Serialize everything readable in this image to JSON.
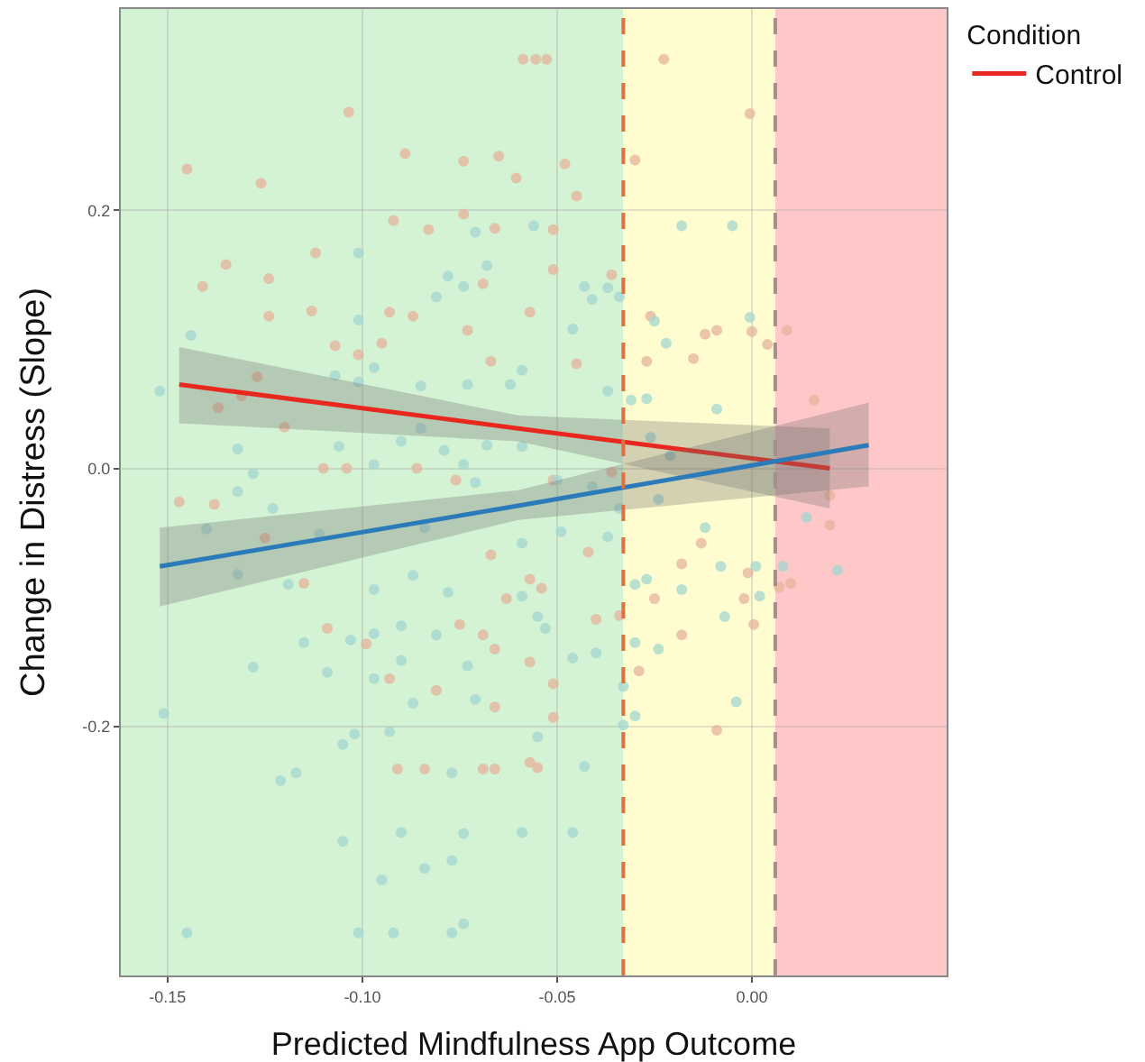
{
  "chart_data": {
    "type": "scatter",
    "xlabel": "Predicted Mindfulness App Outcome",
    "ylabel": "Change in Distress (Slope)",
    "legend_title": "Condition",
    "legend": "top right",
    "grid": true,
    "xlim": [
      -0.162,
      0.05
    ],
    "ylim": [
      -0.393,
      0.356
    ],
    "xticks": [
      -0.15,
      {
        "value": -0.1,
        "label": "-0.10"
      },
      -0.05,
      {
        "value": 0,
        "label": "0.00"
      }
    ],
    "yticks": [
      -0.2,
      {
        "value": 0,
        "label": "0.0"
      },
      0.2
    ],
    "bands": [
      {
        "axis": "x",
        "from": -0.162,
        "to": -0.033,
        "color": "#d4f2d4"
      },
      {
        "axis": "x",
        "from": -0.033,
        "to": 0.006,
        "color": "#fffdd0"
      },
      {
        "axis": "x",
        "from": 0.006,
        "to": 0.05,
        "color": "#ffc8c8"
      }
    ],
    "ref_lines": [
      {
        "axis": "x",
        "value": -0.033,
        "color": "#e07040",
        "line_style": "dashed"
      },
      {
        "axis": "x",
        "value": 0.006,
        "color": "#a09090",
        "line_style": "dashed"
      }
    ],
    "series": [
      {
        "marker": "circle",
        "color": "#e6b39c",
        "x": [
          -0.0587,
          -0.0555,
          -0.0527,
          -0.0226,
          -0.1035,
          -0.145,
          -0.126,
          -0.089,
          -0.074,
          -0.065,
          -0.048,
          -0.03,
          -0.0605,
          -0.045,
          -0.135,
          -0.141,
          -0.124,
          -0.112,
          -0.092,
          -0.083,
          -0.074,
          -0.066,
          -0.051,
          -0.087,
          -0.093,
          -0.124,
          -0.113,
          -0.057,
          -0.036,
          -0.026,
          -0.127,
          -0.137,
          -0.131,
          -0.12,
          -0.147,
          -0.138,
          -0.11,
          -0.104,
          -0.086,
          -0.076,
          -0.051,
          -0.036,
          -0.107,
          -0.101,
          -0.095,
          -0.073,
          -0.067,
          -0.045,
          -0.027,
          -0.069,
          -0.051,
          -0.015,
          -0.0005,
          -0.012,
          -0.009,
          0.0,
          0.009,
          0.004,
          0.016,
          0.02,
          0.02,
          -0.109,
          -0.099,
          -0.075,
          -0.069,
          -0.066,
          -0.057,
          -0.051,
          -0.066,
          -0.051,
          -0.081,
          -0.091,
          -0.084,
          -0.069,
          -0.066,
          -0.057,
          -0.055,
          -0.093,
          -0.04,
          -0.034,
          -0.029,
          -0.115,
          -0.125,
          -0.067,
          -0.057,
          -0.054,
          -0.063,
          -0.025,
          -0.042,
          -0.013,
          -0.001,
          -0.002,
          0.0005,
          -0.009,
          0.007,
          0.01,
          -0.018,
          -0.018
        ],
        "values": [
          0.317,
          0.317,
          0.317,
          0.317,
          0.276,
          0.232,
          0.221,
          0.244,
          0.238,
          0.242,
          0.236,
          0.239,
          0.225,
          0.211,
          0.158,
          0.141,
          0.147,
          0.167,
          0.192,
          0.185,
          0.197,
          0.186,
          0.185,
          0.118,
          0.121,
          0.118,
          0.122,
          0.121,
          0.15,
          0.118,
          0.071,
          0.047,
          0.056,
          0.032,
          -0.026,
          -0.028,
          0.0,
          0.0,
          0.0,
          -0.009,
          -0.009,
          -0.003,
          0.095,
          0.088,
          0.097,
          0.107,
          0.083,
          0.081,
          0.083,
          0.143,
          0.154,
          0.085,
          0.275,
          0.104,
          0.107,
          0.106,
          0.107,
          0.096,
          0.053,
          -0.021,
          -0.044,
          -0.124,
          -0.136,
          -0.121,
          -0.129,
          -0.14,
          -0.15,
          -0.167,
          -0.185,
          -0.193,
          -0.172,
          -0.233,
          -0.233,
          -0.233,
          -0.233,
          -0.228,
          -0.232,
          -0.163,
          -0.117,
          -0.114,
          -0.157,
          -0.089,
          -0.054,
          -0.067,
          -0.086,
          -0.093,
          -0.101,
          -0.101,
          -0.065,
          -0.058,
          -0.081,
          -0.101,
          -0.121,
          -0.203,
          -0.092,
          -0.089,
          -0.074,
          -0.129
        ]
      },
      {
        "marker": "circle",
        "color": "#a3d6d0",
        "x": [
          -0.144,
          -0.152,
          -0.101,
          -0.071,
          -0.068,
          -0.056,
          -0.081,
          -0.101,
          -0.078,
          -0.074,
          -0.043,
          -0.037,
          -0.034,
          -0.041,
          -0.046,
          -0.025,
          -0.022,
          -0.097,
          -0.107,
          -0.101,
          -0.085,
          -0.073,
          -0.059,
          -0.062,
          -0.037,
          -0.031,
          -0.027,
          -0.132,
          -0.128,
          -0.132,
          -0.123,
          -0.14,
          -0.106,
          -0.097,
          -0.09,
          -0.079,
          -0.074,
          -0.071,
          -0.068,
          -0.059,
          -0.05,
          -0.041,
          -0.034,
          -0.024,
          -0.085,
          -0.026,
          -0.021,
          -0.018,
          -0.005,
          -0.0005,
          -0.009,
          0.014,
          -0.151,
          -0.145,
          -0.101,
          -0.092,
          -0.077,
          -0.074,
          -0.095,
          -0.084,
          -0.077,
          -0.105,
          -0.09,
          -0.074,
          -0.059,
          -0.046,
          -0.121,
          -0.117,
          -0.105,
          -0.102,
          -0.093,
          -0.128,
          -0.109,
          -0.097,
          -0.087,
          -0.077,
          -0.071,
          -0.055,
          -0.043,
          -0.033,
          -0.03,
          -0.033,
          -0.103,
          -0.097,
          -0.09,
          -0.081,
          -0.073,
          -0.046,
          -0.04,
          -0.024,
          -0.03,
          -0.09,
          -0.115,
          -0.132,
          -0.119,
          -0.097,
          -0.078,
          -0.059,
          -0.053,
          -0.055,
          -0.03,
          -0.027,
          -0.087,
          -0.111,
          -0.084,
          -0.059,
          -0.049,
          -0.037,
          -0.012,
          -0.008,
          0.001,
          0.002,
          -0.007,
          -0.004,
          -0.018,
          0.022,
          0.008
        ],
        "values": [
          0.103,
          0.06,
          0.167,
          0.183,
          0.157,
          0.188,
          0.133,
          0.115,
          0.149,
          0.141,
          0.141,
          0.14,
          0.133,
          0.131,
          0.108,
          0.114,
          0.097,
          0.078,
          0.072,
          0.067,
          0.064,
          0.065,
          0.076,
          0.065,
          0.06,
          0.053,
          0.054,
          0.015,
          -0.004,
          -0.018,
          -0.031,
          -0.047,
          0.017,
          0.003,
          0.021,
          0.014,
          0.003,
          -0.011,
          0.018,
          0.017,
          -0.009,
          -0.014,
          -0.031,
          -0.024,
          0.031,
          0.024,
          0.01,
          0.188,
          0.188,
          0.117,
          0.046,
          -0.038,
          -0.19,
          -0.36,
          -0.36,
          -0.36,
          -0.36,
          -0.353,
          -0.319,
          -0.31,
          -0.304,
          -0.289,
          -0.282,
          -0.283,
          -0.282,
          -0.282,
          -0.242,
          -0.236,
          -0.214,
          -0.206,
          -0.204,
          -0.154,
          -0.158,
          -0.163,
          -0.182,
          -0.236,
          -0.179,
          -0.208,
          -0.231,
          -0.199,
          -0.192,
          -0.169,
          -0.133,
          -0.128,
          -0.149,
          -0.129,
          -0.153,
          -0.147,
          -0.143,
          -0.14,
          -0.135,
          -0.122,
          -0.135,
          -0.082,
          -0.09,
          -0.094,
          -0.096,
          -0.099,
          -0.124,
          -0.115,
          -0.09,
          -0.086,
          -0.083,
          -0.051,
          -0.046,
          -0.058,
          -0.049,
          -0.053,
          -0.046,
          -0.076,
          -0.076,
          -0.099,
          -0.115,
          -0.181,
          -0.094,
          -0.079,
          -0.076
        ]
      },
      {
        "type": "line",
        "name": "Control",
        "color": "#e8281e",
        "x": [
          -0.147,
          -0.06,
          0.02
        ],
        "values": [
          0.065,
          0.031,
          0.0
        ],
        "lower": [
          0.035,
          0.021,
          -0.031
        ],
        "upper": [
          0.094,
          0.041,
          0.031
        ]
      },
      {
        "type": "line",
        "color": "#2b7bba",
        "x": [
          -0.152,
          -0.06,
          0.03
        ],
        "values": [
          -0.076,
          -0.029,
          0.018
        ],
        "lower": [
          -0.107,
          -0.04,
          -0.014
        ],
        "upper": [
          -0.046,
          -0.017,
          0.051
        ]
      }
    ]
  }
}
